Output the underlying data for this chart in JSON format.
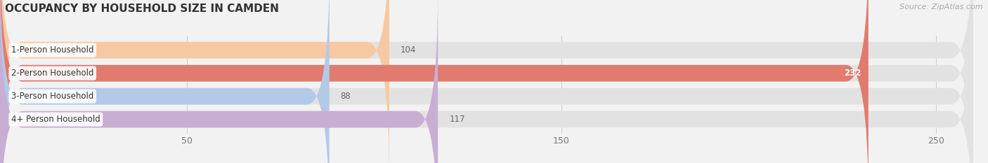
{
  "title": "OCCUPANCY BY HOUSEHOLD SIZE IN CAMDEN",
  "source": "Source: ZipAtlas.com",
  "categories": [
    "1-Person Household",
    "2-Person Household",
    "3-Person Household",
    "4+ Person Household"
  ],
  "values": [
    104,
    232,
    88,
    117
  ],
  "bar_colors": [
    "#f7c9a3",
    "#e07b6e",
    "#b3c9e8",
    "#c9aed4"
  ],
  "label_colors": [
    "#555555",
    "#ffffff",
    "#555555",
    "#777777"
  ],
  "max_value": 260,
  "xticks": [
    50,
    150,
    250
  ],
  "background_color": "#f2f2f2",
  "bar_bg_color": "#e2e2e2",
  "bar_height": 0.72,
  "figsize": [
    14.06,
    2.33
  ],
  "dpi": 100,
  "label_fontsize": 8.5,
  "value_fontsize": 8.5,
  "title_fontsize": 11
}
